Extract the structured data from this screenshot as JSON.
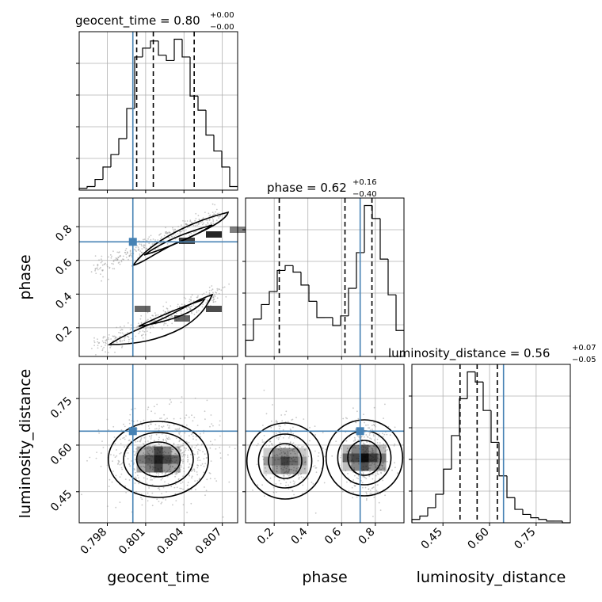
{
  "chart_data": {
    "type": "corner",
    "parameters": [
      "geocent_time",
      "phase",
      "luminosity_distance"
    ],
    "colors": {
      "truth": "#4682b4",
      "hist": "#000000",
      "grid": "#b0b0b0"
    },
    "grid": true,
    "truths": {
      "geocent_time": 0.8,
      "phase": 0.71,
      "luminosity_distance": 0.645
    },
    "titles": [
      {
        "param": "geocent_time",
        "text": "geocent_time = 0.80",
        "plus": "+0.00",
        "minus": "−0.00"
      },
      {
        "param": "phase",
        "text": "phase = 0.62",
        "plus": "+0.16",
        "minus": "−0.40"
      },
      {
        "param": "luminosity_distance",
        "text": "luminosity_distance = 0.56",
        "plus": "+0.07",
        "minus": "−0.05"
      }
    ],
    "axes": {
      "geocent_time": {
        "range": [
          0.7958,
          0.8082
        ],
        "ticks": [
          0.798,
          0.801,
          0.804,
          0.807
        ],
        "ticklabels": [
          "0.798",
          "0.801",
          "0.804",
          "0.807"
        ]
      },
      "phase": {
        "range": [
          0.03,
          0.97
        ],
        "ticks": [
          0.2,
          0.4,
          0.6,
          0.8
        ],
        "ticklabels": [
          "0.2",
          "0.4",
          "0.6",
          "0.8"
        ]
      },
      "luminosity_distance": {
        "range": [
          0.35,
          0.86
        ],
        "ticks": [
          0.45,
          0.6,
          0.75
        ],
        "ticklabels": [
          "0.45",
          "0.60",
          "0.75"
        ]
      }
    },
    "histograms": {
      "geocent_time": {
        "edges": [
          0.7958,
          0.79642,
          0.79704,
          0.79766,
          0.79828,
          0.7989,
          0.79952,
          0.80014,
          0.80076,
          0.80138,
          0.802,
          0.80262,
          0.80324,
          0.80386,
          0.80448,
          0.8051,
          0.80572,
          0.80634,
          0.80696,
          0.80758,
          0.8082
        ],
        "counts": [
          1,
          2,
          6,
          13,
          20,
          29,
          46,
          75,
          80,
          84,
          76,
          73,
          85,
          75,
          53,
          45,
          31,
          22,
          13,
          2
        ],
        "quantiles": [
          0.8003,
          0.8016,
          0.8048
        ]
      },
      "phase": {
        "edges": [
          0.03,
          0.077,
          0.124,
          0.171,
          0.218,
          0.265,
          0.312,
          0.359,
          0.406,
          0.453,
          0.5,
          0.547,
          0.594,
          0.641,
          0.688,
          0.735,
          0.782,
          0.829,
          0.876,
          0.923,
          0.97
        ],
        "counts": [
          10,
          23,
          32,
          40,
          53,
          56,
          52,
          44,
          34,
          24,
          24,
          19,
          25,
          42,
          64,
          93,
          85,
          60,
          38,
          16
        ],
        "quantiles": [
          0.23,
          0.62,
          0.78
        ]
      },
      "luminosity_distance": {
        "edges": [
          0.35,
          0.3755,
          0.401,
          0.4265,
          0.452,
          0.4775,
          0.503,
          0.5285,
          0.554,
          0.5795,
          0.605,
          0.6305,
          0.656,
          0.6815,
          0.707,
          0.7325,
          0.758,
          0.7835,
          0.809,
          0.8345,
          0.86
        ],
        "counts": [
          2,
          4,
          9,
          17,
          32,
          52,
          74,
          90,
          84,
          67,
          48,
          28,
          15,
          8,
          5,
          3,
          2,
          1,
          1,
          0
        ],
        "quantiles": [
          0.505,
          0.56,
          0.625
        ]
      }
    },
    "pairs": [
      {
        "x": "geocent_time",
        "y": "phase"
      },
      {
        "x": "geocent_time",
        "y": "luminosity_distance"
      },
      {
        "x": "phase",
        "y": "luminosity_distance"
      }
    ]
  }
}
